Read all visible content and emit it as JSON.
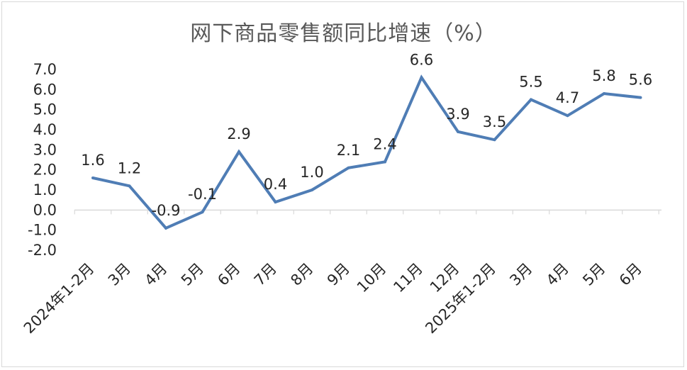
{
  "chart_data": {
    "type": "line",
    "title": "网下商品零售额同比增速（%）",
    "categories": [
      "2024年1-2月",
      "3月",
      "4月",
      "5月",
      "6月",
      "7月",
      "8月",
      "9月",
      "10月",
      "11月",
      "12月",
      "2025年1-2月",
      "3月",
      "4月",
      "5月",
      "6月"
    ],
    "series": [
      {
        "values": [
          1.6,
          1.2,
          -0.9,
          -0.1,
          2.9,
          0.4,
          1.0,
          2.1,
          2.4,
          6.6,
          3.9,
          3.5,
          5.5,
          4.7,
          5.8,
          5.6
        ]
      }
    ],
    "data_labels": [
      "1.6",
      "1.2",
      "-0.9",
      "-0.1",
      "2.9",
      "0.4",
      "1.0",
      "2.1",
      "2.4",
      "6.6",
      "3.9",
      "3.5",
      "5.5",
      "4.7",
      "5.8",
      "5.6"
    ],
    "ylim": [
      -2.0,
      7.0
    ],
    "yticks": [
      "7.0",
      "6.0",
      "5.0",
      "4.0",
      "3.0",
      "2.0",
      "1.0",
      "0.0",
      "-1.0",
      "-2.0"
    ],
    "grid": false,
    "legend": "none",
    "line_color": "#4f7db5",
    "axis_color": "#d9d9d9"
  }
}
